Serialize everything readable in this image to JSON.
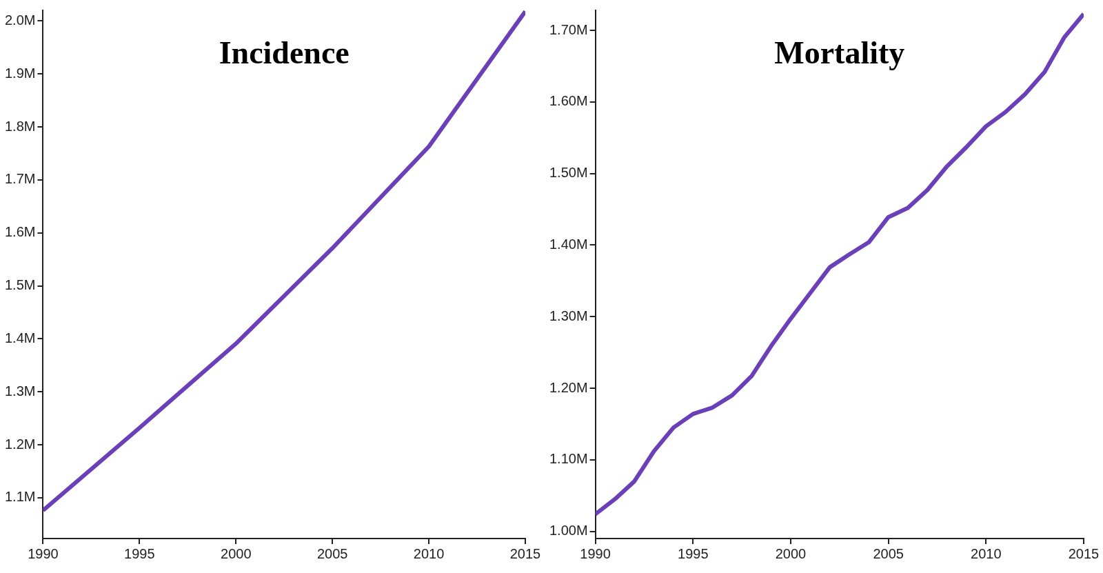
{
  "chart_data": [
    {
      "type": "line",
      "title": "Incidence",
      "color": "#6a40b8",
      "x": [
        1990,
        1995,
        2000,
        2005,
        2010,
        2015
      ],
      "values": [
        1076000,
        1232000,
        1391000,
        1571000,
        1763000,
        2018000
      ],
      "xlim": [
        1990,
        2015
      ],
      "xticks": [
        1990,
        1995,
        2000,
        2005,
        2010,
        2015
      ],
      "ylim": [
        1023000,
        2020000
      ],
      "yticks": [
        {
          "value": 1100000,
          "label": "1.1M"
        },
        {
          "value": 1200000,
          "label": "1.2M"
        },
        {
          "value": 1300000,
          "label": "1.3M"
        },
        {
          "value": 1400000,
          "label": "1.4M"
        },
        {
          "value": 1500000,
          "label": "1.5M"
        },
        {
          "value": 1600000,
          "label": "1.6M"
        },
        {
          "value": 1700000,
          "label": "1.7M"
        },
        {
          "value": 1800000,
          "label": "1.8M"
        },
        {
          "value": 1900000,
          "label": "1.9M"
        },
        {
          "value": 2000000,
          "label": "2.0M"
        }
      ]
    },
    {
      "type": "line",
      "title": "Mortality",
      "color": "#6a40b8",
      "x": [
        1990,
        1991,
        1992,
        1993,
        1994,
        1995,
        1996,
        1997,
        1998,
        1999,
        2000,
        2001,
        2002,
        2003,
        2004,
        2005,
        2006,
        2007,
        2008,
        2009,
        2010,
        2011,
        2012,
        2013,
        2014,
        2015
      ],
      "values": [
        1024000,
        1045000,
        1070000,
        1112000,
        1145000,
        1164000,
        1173000,
        1190000,
        1217000,
        1259000,
        1297000,
        1333000,
        1369000,
        1387000,
        1404000,
        1439000,
        1452000,
        1477000,
        1510000,
        1537000,
        1566000,
        1586000,
        1611000,
        1642000,
        1690000,
        1723000
      ],
      "xlim": [
        1990,
        2015
      ],
      "xticks": [
        1990,
        1995,
        2000,
        2005,
        2010,
        2015
      ],
      "ylim": [
        990000,
        1728000
      ],
      "yticks": [
        {
          "value": 1000000,
          "label": "1.00M"
        },
        {
          "value": 1100000,
          "label": "1.10M"
        },
        {
          "value": 1200000,
          "label": "1.20M"
        },
        {
          "value": 1300000,
          "label": "1.30M"
        },
        {
          "value": 1400000,
          "label": "1.40M"
        },
        {
          "value": 1500000,
          "label": "1.50M"
        },
        {
          "value": 1600000,
          "label": "1.60M"
        },
        {
          "value": 1700000,
          "label": "1.70M"
        }
      ]
    }
  ]
}
